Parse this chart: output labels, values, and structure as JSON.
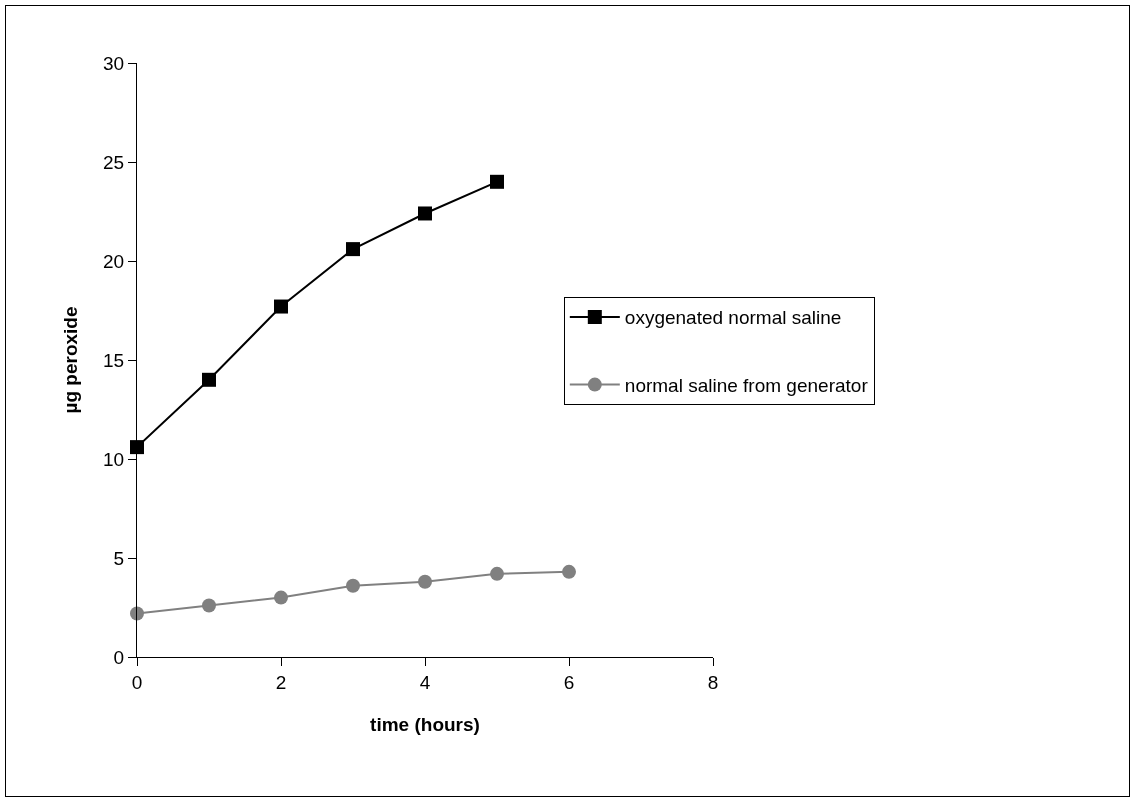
{
  "chart_data": {
    "type": "line",
    "xlabel": "time (hours)",
    "ylabel": "µg peroxide",
    "series": [
      {
        "name": "oxygenated normal saline",
        "color": "#000000",
        "marker": "square",
        "x": [
          0,
          1,
          2,
          3,
          4,
          5
        ],
        "values": [
          10.6,
          14.0,
          17.7,
          20.6,
          22.4,
          24.0
        ]
      },
      {
        "name": "normal saline from generator",
        "color": "#808080",
        "marker": "circle",
        "x": [
          0,
          1,
          2,
          3,
          4,
          5,
          6
        ],
        "values": [
          2.2,
          2.6,
          3.0,
          3.6,
          3.8,
          4.2,
          4.3
        ]
      }
    ],
    "xlim": [
      0,
      8
    ],
    "xticks": [
      0,
      2,
      4,
      6,
      8
    ],
    "ylim": [
      0,
      30
    ],
    "yticks": [
      0,
      5,
      10,
      15,
      20,
      25,
      30
    ],
    "grid": false,
    "legend": "right",
    "line_style": "solid"
  }
}
